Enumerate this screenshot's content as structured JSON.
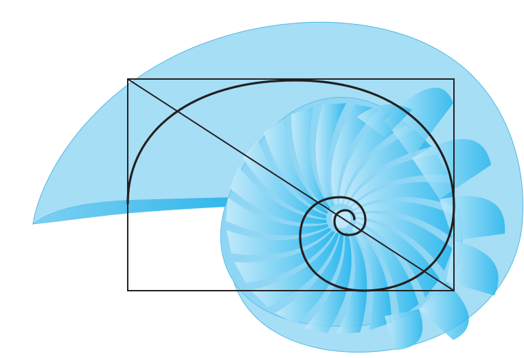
{
  "figure": {
    "subject": "nautilus-shell-golden-spiral",
    "colors": {
      "shell_fill": "#a6def5",
      "shell_stroke": "#4db8e6",
      "chamber_light": "#c9ecfb",
      "chamber_dark": "#20b4ec",
      "overlay_stroke": "#231f20",
      "background": "#ffffff"
    },
    "overlay": {
      "shapes": [
        "rectangle",
        "diagonal",
        "spiral"
      ]
    }
  }
}
